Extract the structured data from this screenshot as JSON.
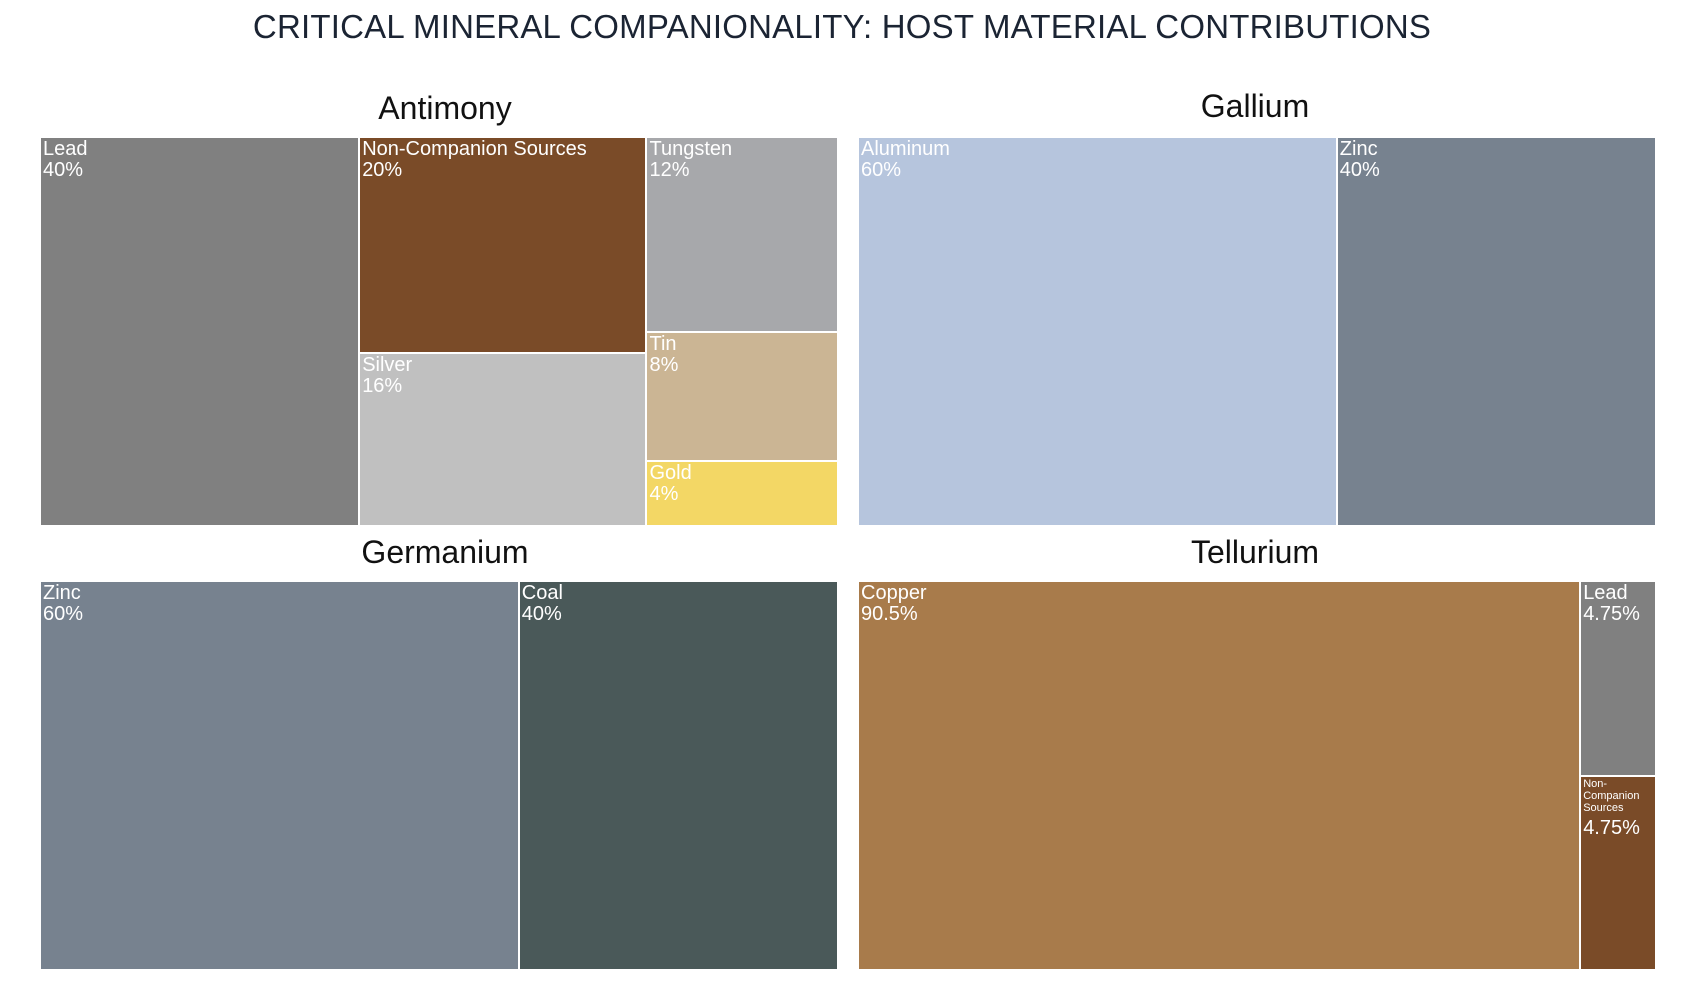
{
  "title": "CRITICAL MINERAL COMPANIONALITY: HOST MATERIAL CONTRIBUTIONS",
  "chart_data": {
    "type": "treemap",
    "title": "CRITICAL MINERAL COMPANIONALITY: HOST MATERIAL CONTRIBUTIONS",
    "panels": [
      {
        "name": "Antimony",
        "items": [
          {
            "label": "Lead",
            "value": 40,
            "display": "40%",
            "color": "#808080"
          },
          {
            "label": "Non-Companion Sources",
            "value": 20,
            "display": "20%",
            "color": "#7a4b28"
          },
          {
            "label": "Silver",
            "value": 16,
            "display": "16%",
            "color": "#c0c0c0"
          },
          {
            "label": "Tungsten",
            "value": 12,
            "display": "12%",
            "color": "#a7a8ab"
          },
          {
            "label": "Tin",
            "value": 8,
            "display": "8%",
            "color": "#cbb594"
          },
          {
            "label": "Gold",
            "value": 4,
            "display": "4%",
            "color": "#f3d765"
          }
        ]
      },
      {
        "name": "Gallium",
        "items": [
          {
            "label": "Aluminum",
            "value": 60,
            "display": "60%",
            "color": "#b6c5dd"
          },
          {
            "label": "Zinc",
            "value": 40,
            "display": "40%",
            "color": "#77828f"
          }
        ]
      },
      {
        "name": "Germanium",
        "items": [
          {
            "label": "Zinc",
            "value": 60,
            "display": "60%",
            "color": "#77828f"
          },
          {
            "label": "Coal",
            "value": 40,
            "display": "40%",
            "color": "#4a5959"
          }
        ]
      },
      {
        "name": "Tellurium",
        "items": [
          {
            "label": "Copper",
            "value": 90.5,
            "display": "90.5%",
            "color": "#a87b4b"
          },
          {
            "label": "Lead",
            "value": 4.75,
            "display": "4.75%",
            "color": "#808080"
          },
          {
            "label": "Non-Companion Sources",
            "value": 4.75,
            "display": "4.75%",
            "color": "#7a4b28"
          }
        ]
      }
    ]
  }
}
